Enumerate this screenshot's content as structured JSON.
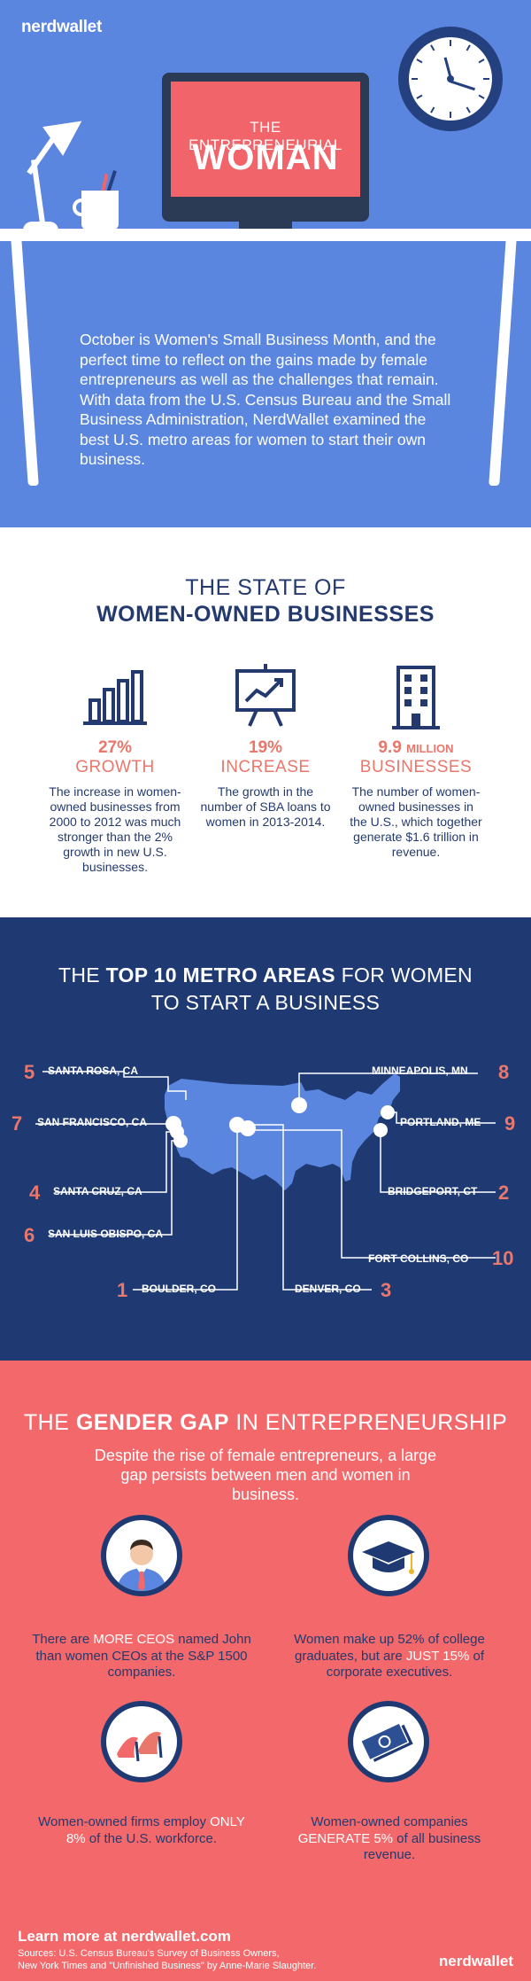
{
  "header": {
    "logo": "nerdwallet",
    "screen_kicker": "THE ENTREPRENEURIAL",
    "screen_title": "WOMAN"
  },
  "intro": {
    "text": "October is Women's Small Business Month, and the perfect time to reflect on the gains made by female entrepreneurs as well as the challenges that remain. With data from the U.S. Census Bureau and the Small Business Administration, NerdWallet examined the best U.S. metro areas for women to start their own business."
  },
  "state": {
    "title_line1": "THE STATE OF",
    "title_line2": "WOMEN-OWNED BUSINESSES",
    "stats": [
      {
        "icon": "bar-chart-icon",
        "number": "27%",
        "label": "GROWTH",
        "desc": "The increase in women-owned businesses from 2000 to 2012 was much stronger than the 2% growth in new U.S. businesses."
      },
      {
        "icon": "presentation-board-icon",
        "number": "19%",
        "label": "INCREASE",
        "desc": "The growth in the number of SBA loans to women in 2013-2014."
      },
      {
        "icon": "office-building-icon",
        "number": "9.9",
        "number_suffix": "MILLION",
        "label": "BUSINESSES",
        "desc": "The number of women-owned businesses in the U.S., which together generate $1.6 trillion in revenue."
      }
    ]
  },
  "metro": {
    "title_pre": "THE ",
    "title_bold": "TOP 10 METRO AREAS",
    "title_post": " FOR WOMEN",
    "title_line2": "TO START A BUSINESS",
    "cities": [
      {
        "rank": "5",
        "name": "SANTA ROSA, CA"
      },
      {
        "rank": "7",
        "name": "SAN FRANCISCO, CA"
      },
      {
        "rank": "4",
        "name": "SANTA CRUZ, CA"
      },
      {
        "rank": "6",
        "name": "SAN LUIS OBISPO, CA"
      },
      {
        "rank": "1",
        "name": "BOULDER, CO"
      },
      {
        "rank": "3",
        "name": "DENVER, CO"
      },
      {
        "rank": "8",
        "name": "MINNEAPOLIS, MN"
      },
      {
        "rank": "9",
        "name": "PORTLAND, ME"
      },
      {
        "rank": "2",
        "name": "BRIDGEPORT, CT"
      },
      {
        "rank": "10",
        "name": "FORT COLLINS, CO"
      }
    ]
  },
  "gap": {
    "title_pre": "THE ",
    "title_bold": "GENDER GAP",
    "title_post": " IN ENTREPRENEURSHIP",
    "subtitle": "Despite the rise of female entrepreneurs, a large gap persists between men and women in business.",
    "facts": [
      {
        "icon": "businessman-icon",
        "pre": "There are ",
        "highlight": "MORE CEOS",
        "post": " named John than women CEOs at the S&P 1500 companies."
      },
      {
        "icon": "graduation-cap-icon",
        "pre": "Women make up 52% of college graduates, but are ",
        "highlight": "JUST 15%",
        "post": " of corporate executives."
      },
      {
        "icon": "high-heels-icon",
        "pre": "Women-owned firms employ ",
        "highlight": "ONLY 8%",
        "post": " of the U.S. workforce."
      },
      {
        "icon": "money-icon",
        "pre": "Women-owned companies ",
        "highlight": "GENERATE 5%",
        "post": " of all business revenue."
      }
    ]
  },
  "footer": {
    "learn_more": "Learn more at nerdwallet.com",
    "sources_line1": "Sources: U.S. Census Bureau's Survey of Business Owners,",
    "sources_line2": "New York Times and \"Unfinished Business\" by Anne-Marie Slaughter.",
    "logo": "nerdwallet"
  },
  "colors": {
    "hero_blue": "#5a86e0",
    "navy": "#1f3a72",
    "coral": "#f3686a",
    "accent_orange": "#e9776c",
    "map_blue": "#5a86e0"
  }
}
